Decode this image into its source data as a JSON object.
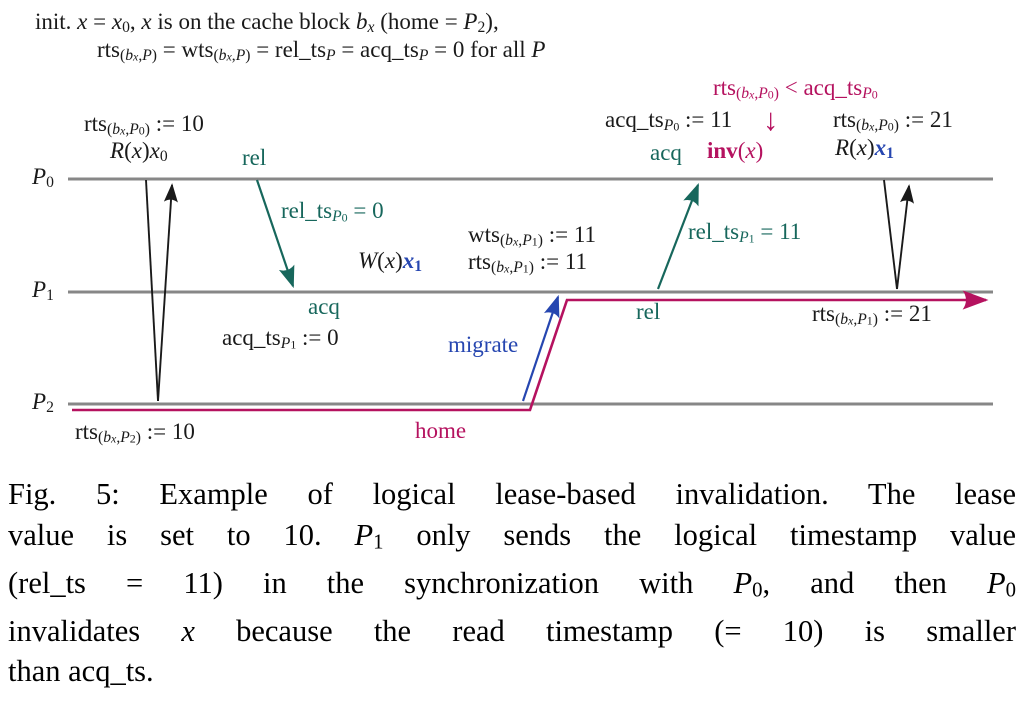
{
  "colors": {
    "black": "#1a1a1a",
    "gray_line": "#878787",
    "teal": "#17675c",
    "blue": "#2646b0",
    "magenta": "#b5125f"
  },
  "diagram": {
    "init": {
      "line1": [
        {
          "t": "init. "
        },
        {
          "t": "x",
          "i": 1
        },
        {
          "t": " = "
        },
        {
          "t": "x",
          "i": 1
        },
        {
          "t": "0",
          "v": 1
        },
        {
          "t": ", "
        },
        {
          "t": "x",
          "i": 1
        },
        {
          "t": " is on the cache block "
        },
        {
          "t": "b",
          "i": 1
        },
        {
          "t": "x",
          "v": 1,
          "i": 1
        },
        {
          "t": " (home = "
        },
        {
          "t": "P",
          "i": 1
        },
        {
          "t": "2",
          "v": 1
        },
        {
          "t": "),"
        }
      ],
      "line2": [
        {
          "t": "rts"
        },
        {
          "t": "(",
          "v": 1
        },
        {
          "t": "b",
          "v": 1,
          "i": 1
        },
        {
          "t": "x",
          "v": 2,
          "i": 1
        },
        {
          "t": ",",
          "v": 1
        },
        {
          "t": "P",
          "v": 1,
          "i": 1
        },
        {
          "t": ")",
          "v": 1
        },
        {
          "t": " = wts"
        },
        {
          "t": "(",
          "v": 1
        },
        {
          "t": "b",
          "v": 1,
          "i": 1
        },
        {
          "t": "x",
          "v": 2,
          "i": 1
        },
        {
          "t": ",",
          "v": 1
        },
        {
          "t": "P",
          "v": 1,
          "i": 1
        },
        {
          "t": ")",
          "v": 1
        },
        {
          "t": " = rel_ts"
        },
        {
          "t": "P",
          "v": 1,
          "i": 1
        },
        {
          "t": " = acq_ts"
        },
        {
          "t": "P",
          "v": 1,
          "i": 1
        },
        {
          "t": " = 0 for all "
        },
        {
          "t": "P",
          "i": 1
        }
      ]
    },
    "labels": {
      "p0": [
        {
          "t": "P",
          "i": 1
        },
        {
          "t": "0",
          "v": 1
        }
      ],
      "p1": [
        {
          "t": "P",
          "i": 1
        },
        {
          "t": "1",
          "v": 1
        }
      ],
      "p2": [
        {
          "t": "P",
          "i": 1
        },
        {
          "t": "2",
          "v": 1
        }
      ],
      "rts_p0_10": [
        {
          "t": "rts"
        },
        {
          "t": "(",
          "v": 1
        },
        {
          "t": "b",
          "v": 1,
          "i": 1
        },
        {
          "t": "x",
          "v": 2,
          "i": 1
        },
        {
          "t": ",",
          "v": 1
        },
        {
          "t": "P",
          "v": 1,
          "i": 1
        },
        {
          "t": "0",
          "v": 2
        },
        {
          "t": ")",
          "v": 1
        },
        {
          "t": " := 10"
        }
      ],
      "r_x0": [
        {
          "t": "R",
          "i": 1
        },
        {
          "t": "("
        },
        {
          "t": "x",
          "i": 1
        },
        {
          "t": ")"
        },
        {
          "t": "x",
          "i": 1
        },
        {
          "t": "0",
          "v": 1
        }
      ],
      "rel1": [
        {
          "t": "rel"
        }
      ],
      "rel_ts_p0_0": [
        {
          "t": "rel_ts"
        },
        {
          "t": "P",
          "v": 1,
          "i": 1
        },
        {
          "t": "0",
          "v": 2
        },
        {
          "t": " = 0"
        }
      ],
      "acq1": [
        {
          "t": "acq"
        }
      ],
      "acq_ts_p1_0": [
        {
          "t": "acq_ts"
        },
        {
          "t": "P",
          "v": 1,
          "i": 1
        },
        {
          "t": "1",
          "v": 2
        },
        {
          "t": " := 0"
        }
      ],
      "w_x1": [
        {
          "t": "W",
          "i": 1
        },
        {
          "t": "("
        },
        {
          "t": "x",
          "i": 1
        },
        {
          "t": ")"
        },
        {
          "t": "x",
          "i": 1,
          "b": 1,
          "c": "blue"
        },
        {
          "t": "1",
          "v": 1,
          "b": 1,
          "c": "blue"
        }
      ],
      "wts_p1_11": [
        {
          "t": "wts"
        },
        {
          "t": "(",
          "v": 1
        },
        {
          "t": "b",
          "v": 1,
          "i": 1
        },
        {
          "t": "x",
          "v": 2,
          "i": 1
        },
        {
          "t": ",",
          "v": 1
        },
        {
          "t": "P",
          "v": 1,
          "i": 1
        },
        {
          "t": "1",
          "v": 2
        },
        {
          "t": ")",
          "v": 1
        },
        {
          "t": " := 11"
        }
      ],
      "rts_p1_11": [
        {
          "t": "rts"
        },
        {
          "t": "(",
          "v": 1
        },
        {
          "t": "b",
          "v": 1,
          "i": 1
        },
        {
          "t": "x",
          "v": 2,
          "i": 1
        },
        {
          "t": ",",
          "v": 1
        },
        {
          "t": "P",
          "v": 1,
          "i": 1
        },
        {
          "t": "1",
          "v": 2
        },
        {
          "t": ")",
          "v": 1
        },
        {
          "t": " := 11"
        }
      ],
      "migrate": [
        {
          "t": "migrate"
        }
      ],
      "rel2": [
        {
          "t": "rel"
        }
      ],
      "rel_ts_p1_11": [
        {
          "t": "rel_ts"
        },
        {
          "t": "P",
          "v": 1,
          "i": 1
        },
        {
          "t": "1",
          "v": 2
        },
        {
          "t": " = 11"
        }
      ],
      "cond": [
        {
          "t": "rts"
        },
        {
          "t": "(",
          "v": 1
        },
        {
          "t": "b",
          "v": 1,
          "i": 1
        },
        {
          "t": "x",
          "v": 2,
          "i": 1
        },
        {
          "t": ",",
          "v": 1
        },
        {
          "t": "P",
          "v": 1,
          "i": 1
        },
        {
          "t": "0",
          "v": 2
        },
        {
          "t": ")",
          "v": 1
        },
        {
          "t": " < acq_ts"
        },
        {
          "t": "P",
          "v": 1,
          "i": 1
        },
        {
          "t": "0",
          "v": 2
        }
      ],
      "acq_ts_p0_11": [
        {
          "t": "acq_ts"
        },
        {
          "t": "P",
          "v": 1,
          "i": 1
        },
        {
          "t": "0",
          "v": 2
        },
        {
          "t": " := 11"
        }
      ],
      "inv_down_arrow": [
        {
          "t": "↓"
        }
      ],
      "rts_p0_21": [
        {
          "t": "rts"
        },
        {
          "t": "(",
          "v": 1
        },
        {
          "t": "b",
          "v": 1,
          "i": 1
        },
        {
          "t": "x",
          "v": 2,
          "i": 1
        },
        {
          "t": ",",
          "v": 1
        },
        {
          "t": "P",
          "v": 1,
          "i": 1
        },
        {
          "t": "0",
          "v": 2
        },
        {
          "t": ")",
          "v": 1
        },
        {
          "t": " := 21"
        }
      ],
      "acq2": [
        {
          "t": "acq"
        }
      ],
      "inv_x": [
        {
          "t": "inv",
          "b": 1
        },
        {
          "t": "("
        },
        {
          "t": "x",
          "i": 1
        },
        {
          "t": ")"
        }
      ],
      "r_x1": [
        {
          "t": "R",
          "i": 1
        },
        {
          "t": "("
        },
        {
          "t": "x",
          "i": 1
        },
        {
          "t": ")"
        },
        {
          "t": "x",
          "i": 1,
          "b": 1,
          "c": "blue"
        },
        {
          "t": "1",
          "v": 1,
          "b": 1,
          "c": "blue"
        }
      ],
      "rts_p1_21": [
        {
          "t": "rts"
        },
        {
          "t": "(",
          "v": 1
        },
        {
          "t": "b",
          "v": 1,
          "i": 1
        },
        {
          "t": "x",
          "v": 2,
          "i": 1
        },
        {
          "t": ",",
          "v": 1
        },
        {
          "t": "P",
          "v": 1,
          "i": 1
        },
        {
          "t": "1",
          "v": 2
        },
        {
          "t": ")",
          "v": 1
        },
        {
          "t": " := 21"
        }
      ],
      "rts_p2_10": [
        {
          "t": "rts"
        },
        {
          "t": "(",
          "v": 1
        },
        {
          "t": "b",
          "v": 1,
          "i": 1
        },
        {
          "t": "x",
          "v": 2,
          "i": 1
        },
        {
          "t": ",",
          "v": 1
        },
        {
          "t": "P",
          "v": 1,
          "i": 1
        },
        {
          "t": "2",
          "v": 2
        },
        {
          "t": ")",
          "v": 1
        },
        {
          "t": " := 10"
        }
      ],
      "home": [
        {
          "t": "home"
        }
      ]
    }
  },
  "caption": {
    "lines": [
      [
        {
          "t": "Fig. 5: Example of logical lease-based invalidation. The lease"
        }
      ],
      [
        {
          "t": "value is set to 10. "
        },
        {
          "t": "P",
          "i": 1
        },
        {
          "t": "1",
          "v": 1
        },
        {
          "t": " only sends the logical timestamp value"
        }
      ],
      [
        {
          "t": "(rel_ts = 11) in the synchronization with "
        },
        {
          "t": "P",
          "i": 1
        },
        {
          "t": "0",
          "v": 1
        },
        {
          "t": ", and then "
        },
        {
          "t": "P",
          "i": 1
        },
        {
          "t": "0",
          "v": 1
        }
      ],
      [
        {
          "t": "invalidates "
        },
        {
          "t": "x",
          "i": 1
        },
        {
          "t": " because the read timestamp (= 10) is smaller"
        }
      ],
      [
        {
          "t": "than acq_ts."
        }
      ]
    ]
  }
}
